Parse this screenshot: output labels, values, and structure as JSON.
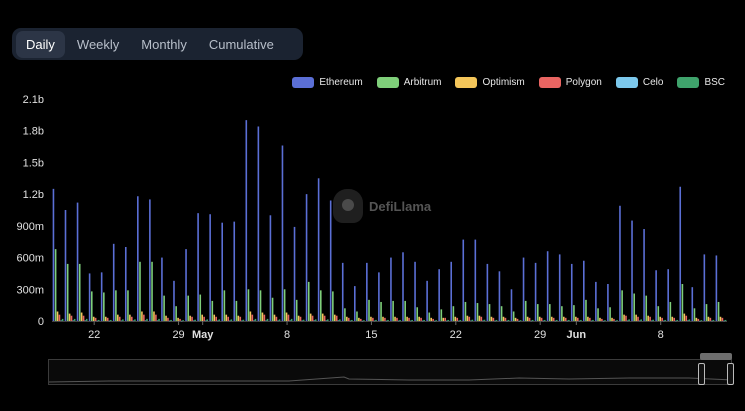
{
  "tabs": [
    {
      "label": "Daily",
      "active": true
    },
    {
      "label": "Weekly",
      "active": false
    },
    {
      "label": "Monthly",
      "active": false
    },
    {
      "label": "Cumulative",
      "active": false
    }
  ],
  "legend": [
    {
      "name": "Ethereum",
      "color": "#5b6fd6"
    },
    {
      "name": "Arbitrum",
      "color": "#7fcf7a"
    },
    {
      "name": "Optimism",
      "color": "#f4c65a"
    },
    {
      "name": "Polygon",
      "color": "#e96562"
    },
    {
      "name": "Celo",
      "color": "#7cc8ec"
    },
    {
      "name": "BSC",
      "color": "#3fa36c"
    }
  ],
  "watermark": {
    "text": "DefiLlama"
  },
  "chart_data": {
    "type": "bar",
    "stacked": false,
    "title": "",
    "xlabel": "",
    "ylabel": "",
    "ylim": [
      0,
      2100000000
    ],
    "y_ticks": [
      "0",
      "300m",
      "600m",
      "900m",
      "1.2b",
      "1.5b",
      "1.8b",
      "2.1b"
    ],
    "x_tick_labels": [
      {
        "index": 3,
        "label": "22",
        "bold": false
      },
      {
        "index": 10,
        "label": "29",
        "bold": false
      },
      {
        "index": 12,
        "label": "May",
        "bold": true
      },
      {
        "index": 19,
        "label": "8",
        "bold": false
      },
      {
        "index": 26,
        "label": "15",
        "bold": false
      },
      {
        "index": 33,
        "label": "22",
        "bold": false
      },
      {
        "index": 40,
        "label": "29",
        "bold": false
      },
      {
        "index": 43,
        "label": "Jun",
        "bold": true
      },
      {
        "index": 50,
        "label": "8",
        "bold": false
      }
    ],
    "series": [
      {
        "name": "Ethereum",
        "values": [
          1250000000,
          1050000000,
          1120000000,
          450000000,
          460000000,
          730000000,
          700000000,
          1180000000,
          1150000000,
          600000000,
          380000000,
          680000000,
          1020000000,
          1010000000,
          930000000,
          940000000,
          1900000000,
          1840000000,
          1000000000,
          1660000000,
          890000000,
          1200000000,
          1350000000,
          1140000000,
          550000000,
          330000000,
          550000000,
          460000000,
          600000000,
          650000000,
          560000000,
          380000000,
          490000000,
          560000000,
          770000000,
          770000000,
          540000000,
          470000000,
          300000000,
          600000000,
          550000000,
          660000000,
          630000000,
          540000000,
          570000000,
          370000000,
          350000000,
          1090000000,
          950000000,
          870000000,
          480000000,
          490000000,
          1270000000,
          320000000,
          630000000,
          620000000
        ]
      },
      {
        "name": "Arbitrum",
        "values": [
          680000000,
          540000000,
          540000000,
          280000000,
          270000000,
          290000000,
          290000000,
          560000000,
          560000000,
          240000000,
          140000000,
          240000000,
          250000000,
          190000000,
          290000000,
          190000000,
          300000000,
          290000000,
          220000000,
          300000000,
          200000000,
          370000000,
          290000000,
          280000000,
          120000000,
          90000000,
          200000000,
          180000000,
          190000000,
          190000000,
          130000000,
          80000000,
          110000000,
          140000000,
          180000000,
          170000000,
          160000000,
          140000000,
          90000000,
          190000000,
          160000000,
          160000000,
          140000000,
          150000000,
          200000000,
          120000000,
          130000000,
          290000000,
          260000000,
          240000000,
          140000000,
          180000000,
          350000000,
          120000000,
          160000000,
          180000000
        ]
      },
      {
        "name": "Optimism",
        "values": [
          90000000,
          70000000,
          80000000,
          40000000,
          40000000,
          60000000,
          60000000,
          90000000,
          90000000,
          50000000,
          30000000,
          50000000,
          60000000,
          60000000,
          60000000,
          50000000,
          90000000,
          80000000,
          60000000,
          80000000,
          50000000,
          70000000,
          70000000,
          60000000,
          40000000,
          30000000,
          40000000,
          40000000,
          40000000,
          40000000,
          40000000,
          30000000,
          30000000,
          40000000,
          50000000,
          50000000,
          40000000,
          40000000,
          30000000,
          40000000,
          40000000,
          40000000,
          40000000,
          40000000,
          40000000,
          30000000,
          30000000,
          60000000,
          60000000,
          50000000,
          40000000,
          40000000,
          70000000,
          30000000,
          40000000,
          40000000
        ]
      },
      {
        "name": "Polygon",
        "values": [
          60000000,
          50000000,
          50000000,
          30000000,
          30000000,
          40000000,
          40000000,
          60000000,
          60000000,
          30000000,
          20000000,
          40000000,
          40000000,
          40000000,
          40000000,
          40000000,
          60000000,
          60000000,
          40000000,
          60000000,
          40000000,
          50000000,
          50000000,
          50000000,
          30000000,
          20000000,
          30000000,
          30000000,
          30000000,
          30000000,
          30000000,
          20000000,
          30000000,
          30000000,
          40000000,
          40000000,
          30000000,
          30000000,
          20000000,
          30000000,
          30000000,
          30000000,
          30000000,
          30000000,
          30000000,
          20000000,
          20000000,
          50000000,
          40000000,
          40000000,
          30000000,
          30000000,
          50000000,
          20000000,
          30000000,
          30000000
        ]
      },
      {
        "name": "Celo",
        "values": [
          5000000,
          5000000,
          5000000,
          3000000,
          3000000,
          4000000,
          4000000,
          5000000,
          5000000,
          3000000,
          2000000,
          4000000,
          4000000,
          4000000,
          4000000,
          4000000,
          5000000,
          5000000,
          4000000,
          5000000,
          4000000,
          5000000,
          5000000,
          5000000,
          3000000,
          2000000,
          3000000,
          3000000,
          3000000,
          3000000,
          3000000,
          2000000,
          3000000,
          3000000,
          4000000,
          4000000,
          3000000,
          3000000,
          2000000,
          3000000,
          3000000,
          3000000,
          3000000,
          3000000,
          3000000,
          2000000,
          2000000,
          4000000,
          4000000,
          4000000,
          3000000,
          3000000,
          5000000,
          2000000,
          3000000,
          3000000
        ]
      },
      {
        "name": "BSC",
        "values": [
          20000000,
          20000000,
          20000000,
          10000000,
          10000000,
          15000000,
          15000000,
          20000000,
          20000000,
          10000000,
          8000000,
          12000000,
          15000000,
          15000000,
          15000000,
          12000000,
          20000000,
          20000000,
          15000000,
          20000000,
          12000000,
          15000000,
          15000000,
          15000000,
          10000000,
          8000000,
          10000000,
          10000000,
          10000000,
          10000000,
          10000000,
          8000000,
          10000000,
          10000000,
          12000000,
          12000000,
          10000000,
          10000000,
          8000000,
          10000000,
          10000000,
          10000000,
          10000000,
          10000000,
          10000000,
          8000000,
          8000000,
          15000000,
          15000000,
          12000000,
          10000000,
          10000000,
          15000000,
          8000000,
          10000000,
          10000000
        ]
      }
    ]
  }
}
